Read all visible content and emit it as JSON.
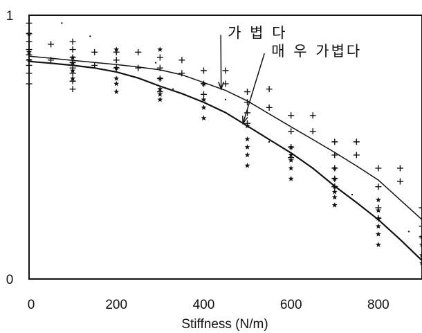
{
  "chart_data": {
    "type": "scatter",
    "title": "",
    "xlabel": "Stiffness (N/m)",
    "ylabel": "",
    "xlim": [
      0,
      900
    ],
    "ylim": [
      0,
      1
    ],
    "x_ticks": [
      0,
      200,
      400,
      600,
      800
    ],
    "y_ticks": [
      0,
      1
    ],
    "grid": false,
    "legend": "none",
    "colors": {
      "ink": "#111111",
      "background": "#ffffff"
    },
    "series": [
      {
        "marker": "plus",
        "points": [
          [
            0,
            0.97
          ],
          [
            0,
            0.93
          ],
          [
            0,
            0.9
          ],
          [
            0,
            0.87
          ],
          [
            0,
            0.85
          ],
          [
            0,
            0.83
          ],
          [
            0,
            0.81
          ],
          [
            0,
            0.78
          ],
          [
            0,
            0.74
          ],
          [
            50,
            0.89
          ],
          [
            50,
            0.83
          ],
          [
            100,
            0.9
          ],
          [
            100,
            0.87
          ],
          [
            100,
            0.84
          ],
          [
            100,
            0.82
          ],
          [
            100,
            0.8
          ],
          [
            100,
            0.78
          ],
          [
            100,
            0.75
          ],
          [
            100,
            0.72
          ],
          [
            150,
            0.86
          ],
          [
            150,
            0.81
          ],
          [
            200,
            0.86
          ],
          [
            200,
            0.83
          ],
          [
            200,
            0.8
          ],
          [
            250,
            0.86
          ],
          [
            250,
            0.8
          ],
          [
            300,
            0.84
          ],
          [
            300,
            0.8
          ],
          [
            300,
            0.76
          ],
          [
            300,
            0.71
          ],
          [
            350,
            0.83
          ],
          [
            350,
            0.78
          ],
          [
            400,
            0.79
          ],
          [
            400,
            0.74
          ],
          [
            400,
            0.7
          ],
          [
            450,
            0.79
          ],
          [
            450,
            0.74
          ],
          [
            500,
            0.71
          ],
          [
            500,
            0.67
          ],
          [
            500,
            0.63
          ],
          [
            500,
            0.59
          ],
          [
            550,
            0.72
          ],
          [
            550,
            0.65
          ],
          [
            600,
            0.62
          ],
          [
            600,
            0.56
          ],
          [
            600,
            0.5
          ],
          [
            600,
            0.46
          ],
          [
            650,
            0.62
          ],
          [
            650,
            0.56
          ],
          [
            700,
            0.52
          ],
          [
            700,
            0.47
          ],
          [
            700,
            0.42
          ],
          [
            700,
            0.38
          ],
          [
            700,
            0.35
          ],
          [
            750,
            0.52
          ],
          [
            750,
            0.47
          ],
          [
            800,
            0.42
          ],
          [
            800,
            0.35
          ],
          [
            800,
            0.27
          ],
          [
            800,
            0.23
          ],
          [
            850,
            0.42
          ],
          [
            850,
            0.37
          ],
          [
            900,
            0.27
          ],
          [
            900,
            0.2
          ],
          [
            900,
            0.16
          ]
        ]
      },
      {
        "marker": "star",
        "points": [
          [
            0,
            0.93
          ],
          [
            0,
            0.86
          ],
          [
            0,
            0.83
          ],
          [
            100,
            0.84
          ],
          [
            100,
            0.82
          ],
          [
            100,
            0.79
          ],
          [
            100,
            0.76
          ],
          [
            200,
            0.87
          ],
          [
            200,
            0.8
          ],
          [
            200,
            0.76
          ],
          [
            200,
            0.74
          ],
          [
            200,
            0.71
          ],
          [
            300,
            0.87
          ],
          [
            300,
            0.76
          ],
          [
            300,
            0.72
          ],
          [
            300,
            0.7
          ],
          [
            300,
            0.68
          ],
          [
            400,
            0.74
          ],
          [
            400,
            0.68
          ],
          [
            400,
            0.65
          ],
          [
            400,
            0.61
          ],
          [
            500,
            0.58
          ],
          [
            500,
            0.53
          ],
          [
            500,
            0.5
          ],
          [
            500,
            0.47
          ],
          [
            500,
            0.43
          ],
          [
            600,
            0.5
          ],
          [
            600,
            0.47
          ],
          [
            600,
            0.45
          ],
          [
            600,
            0.42
          ],
          [
            600,
            0.38
          ],
          [
            700,
            0.42
          ],
          [
            700,
            0.38
          ],
          [
            700,
            0.35
          ],
          [
            700,
            0.33
          ],
          [
            700,
            0.31
          ],
          [
            700,
            0.28
          ],
          [
            800,
            0.3
          ],
          [
            800,
            0.26
          ],
          [
            800,
            0.23
          ],
          [
            800,
            0.2
          ],
          [
            800,
            0.17
          ],
          [
            800,
            0.13
          ],
          [
            900,
            0.16
          ],
          [
            900,
            0.13
          ],
          [
            900,
            0.09
          ],
          [
            900,
            0.06
          ]
        ]
      },
      {
        "marker": "dot",
        "points": [
          [
            75,
            0.97
          ],
          [
            140,
            0.92
          ],
          [
            290,
            0.82
          ],
          [
            300,
            0.72
          ],
          [
            330,
            0.72
          ],
          [
            450,
            0.68
          ],
          [
            550,
            0.52
          ],
          [
            650,
            0.42
          ],
          [
            740,
            0.32
          ],
          [
            870,
            0.18
          ]
        ]
      },
      {
        "marker": "line",
        "points": [
          [
            0,
            0.845
          ],
          [
            50,
            0.837
          ],
          [
            100,
            0.829
          ],
          [
            150,
            0.821
          ],
          [
            200,
            0.813
          ],
          [
            250,
            0.804
          ],
          [
            300,
            0.793
          ],
          [
            350,
            0.774
          ],
          [
            400,
            0.745
          ],
          [
            450,
            0.715
          ],
          [
            500,
            0.675
          ],
          [
            550,
            0.626
          ],
          [
            600,
            0.577
          ],
          [
            650,
            0.529
          ],
          [
            700,
            0.48
          ],
          [
            750,
            0.429
          ],
          [
            800,
            0.375
          ],
          [
            850,
            0.3
          ],
          [
            900,
            0.225
          ]
        ]
      },
      {
        "marker": "line",
        "points": [
          [
            0,
            0.825
          ],
          [
            50,
            0.818
          ],
          [
            100,
            0.81
          ],
          [
            150,
            0.8
          ],
          [
            200,
            0.785
          ],
          [
            250,
            0.762
          ],
          [
            300,
            0.731
          ],
          [
            350,
            0.703
          ],
          [
            400,
            0.67
          ],
          [
            450,
            0.631
          ],
          [
            500,
            0.58
          ],
          [
            550,
            0.529
          ],
          [
            600,
            0.478
          ],
          [
            650,
            0.42
          ],
          [
            700,
            0.352
          ],
          [
            750,
            0.29
          ],
          [
            800,
            0.225
          ],
          [
            850,
            0.15
          ],
          [
            900,
            0.07
          ]
        ]
      }
    ],
    "annotations": [
      {
        "text": "가 볍 다",
        "text_at": [
          455,
          0.915
        ],
        "arrow_to": [
          440,
          0.72
        ]
      },
      {
        "text": "매 우  가볍다",
        "text_at": [
          555,
          0.845
        ],
        "arrow_to": [
          490,
          0.59
        ]
      }
    ]
  }
}
